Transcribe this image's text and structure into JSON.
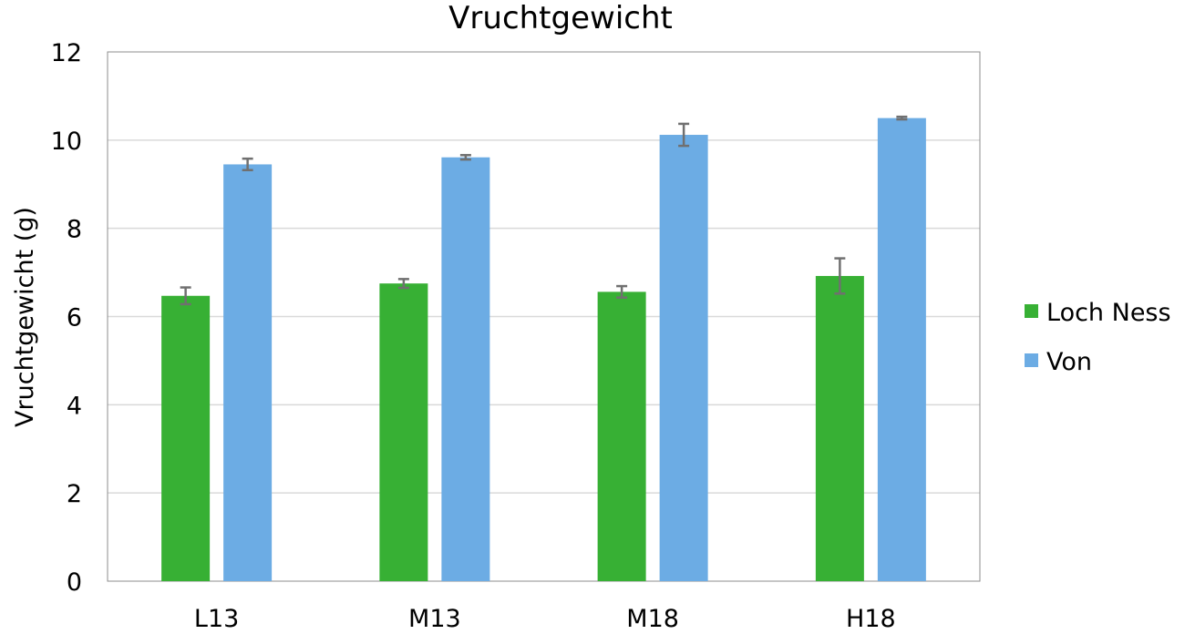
{
  "chart_data": {
    "type": "bar",
    "title": "Vruchtgewicht",
    "xlabel": "",
    "ylabel": "Vruchtgewicht (g)",
    "ylim": [
      0,
      12
    ],
    "yticks": [
      0,
      2,
      4,
      6,
      8,
      10,
      12
    ],
    "grid": true,
    "legend_position": "right",
    "categories": [
      "L13",
      "M13",
      "M18",
      "H18"
    ],
    "series": [
      {
        "name": "Loch Ness",
        "color": "#37b034",
        "values": [
          6.47,
          6.75,
          6.56,
          6.92
        ],
        "errors": [
          0.19,
          0.1,
          0.13,
          0.4
        ]
      },
      {
        "name": "Von",
        "color": "#6cace4",
        "values": [
          9.45,
          9.61,
          10.12,
          10.5
        ],
        "errors": [
          0.13,
          0.05,
          0.25,
          0.03
        ]
      }
    ]
  }
}
